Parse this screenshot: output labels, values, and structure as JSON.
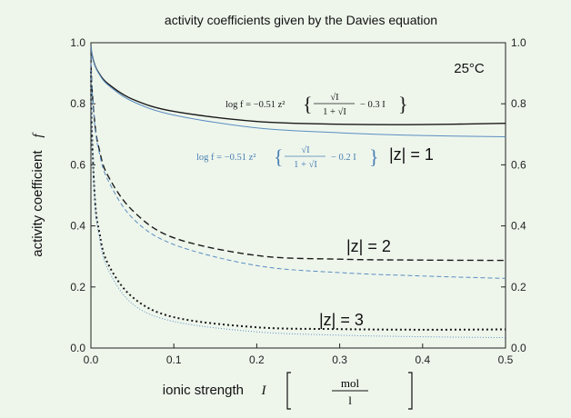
{
  "chart_data": {
    "type": "line",
    "title": "activity coefficients given by the Davies equation",
    "xlabel": "ionic strength",
    "xlabel_symbol": "I",
    "xlabel_unit_num": "mol",
    "xlabel_unit_den": "l",
    "ylabel": "activity coefficient",
    "ylabel_symbol": "f",
    "xlim": [
      0,
      0.5
    ],
    "ylim": [
      0,
      1
    ],
    "x_ticks": [
      "0.0",
      "0.1",
      "0.2",
      "0.3",
      "0.4",
      "0.5"
    ],
    "y_ticks": [
      "0.0",
      "0.2",
      "0.4",
      "0.6",
      "0.8",
      "1.0"
    ],
    "y2_ticks": [
      "0.0",
      "0.2",
      "0.4",
      "0.6",
      "0.8",
      "1.0"
    ],
    "temperature_label": "25°C",
    "annotations": {
      "z1": "|z| = 1",
      "z2": "|z| = 2",
      "z3": "|z| = 3"
    },
    "equations": {
      "black": {
        "lhs": "log f = −0.51 z² ",
        "num": "√I",
        "den": "1 + √I",
        "tail": "− 0.3 I"
      },
      "blue": {
        "lhs": "log f = −0.51 z² ",
        "num": "√I",
        "den": "1 + √I",
        "tail": "− 0.2 I"
      }
    },
    "series": [
      {
        "z": 1,
        "coef": 0.3,
        "style": "solid",
        "color": "#1a1a1a",
        "x": [
          0.0001,
          0.001,
          0.005,
          0.01,
          0.02,
          0.05,
          0.1,
          0.2,
          0.3,
          0.4,
          0.5
        ],
        "y": [
          0.989,
          0.965,
          0.925,
          0.899,
          0.867,
          0.815,
          0.775,
          0.742,
          0.733,
          0.732,
          0.736
        ]
      },
      {
        "z": 1,
        "coef": 0.2,
        "style": "solid",
        "color": "#5b8dc0",
        "x": [
          0.0001,
          0.001,
          0.005,
          0.01,
          0.02,
          0.05,
          0.1,
          0.2,
          0.3,
          0.4,
          0.5
        ],
        "y": [
          0.989,
          0.965,
          0.924,
          0.897,
          0.863,
          0.808,
          0.763,
          0.721,
          0.705,
          0.696,
          0.692
        ]
      },
      {
        "z": 2,
        "coef": 0.3,
        "style": "dashed",
        "color": "#1a1a1a",
        "x": [
          0.0001,
          0.001,
          0.005,
          0.01,
          0.02,
          0.05,
          0.1,
          0.2,
          0.3,
          0.4,
          0.5
        ],
        "y": [
          0.957,
          0.866,
          0.728,
          0.651,
          0.567,
          0.451,
          0.361,
          0.303,
          0.291,
          0.288,
          0.287
        ]
      },
      {
        "z": 2,
        "coef": 0.2,
        "style": "dashed",
        "color": "#5b8dc0",
        "x": [
          0.0001,
          0.001,
          0.005,
          0.01,
          0.02,
          0.05,
          0.1,
          0.2,
          0.3,
          0.4,
          0.5
        ],
        "y": [
          0.957,
          0.866,
          0.721,
          0.641,
          0.553,
          0.426,
          0.339,
          0.27,
          0.247,
          0.236,
          0.228
        ]
      },
      {
        "z": 3,
        "coef": 0.3,
        "style": "dotted",
        "color": "#1a1a1a",
        "x": [
          0.0001,
          0.001,
          0.005,
          0.01,
          0.02,
          0.05,
          0.1,
          0.2,
          0.3,
          0.4,
          0.5
        ],
        "y": [
          0.906,
          0.723,
          0.48,
          0.381,
          0.279,
          0.167,
          0.101,
          0.068,
          0.062,
          0.06,
          0.061
        ]
      },
      {
        "z": 3,
        "coef": 0.2,
        "style": "dotted",
        "color": "#5b8dc0",
        "x": [
          0.0001,
          0.001,
          0.005,
          0.01,
          0.02,
          0.05,
          0.1,
          0.2,
          0.3,
          0.4,
          0.5
        ],
        "y": [
          0.906,
          0.723,
          0.472,
          0.367,
          0.261,
          0.145,
          0.087,
          0.053,
          0.042,
          0.037,
          0.034
        ]
      }
    ]
  }
}
